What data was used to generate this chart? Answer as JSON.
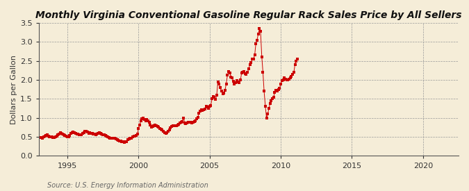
{
  "title": "Monthly Virginia Conventional Gasoline Regular Rack Sales Price by All Sellers",
  "ylabel": "Dollars per Gallon",
  "source": "Source: U.S. Energy Information Administration",
  "xlim": [
    1993.0,
    2022.5
  ],
  "ylim": [
    0.0,
    3.5
  ],
  "yticks": [
    0.0,
    0.5,
    1.0,
    1.5,
    2.0,
    2.5,
    3.0,
    3.5
  ],
  "xticks": [
    1995,
    2000,
    2005,
    2010,
    2015,
    2020
  ],
  "background_color": "#f5edd8",
  "plot_bg_color": "#f5edd8",
  "dot_color": "#cc0000",
  "line_color": "#cc0000",
  "dot_size": 5,
  "title_fontsize": 10,
  "label_fontsize": 8,
  "tick_fontsize": 8,
  "source_fontsize": 7,
  "data": [
    [
      1993.17,
      0.48
    ],
    [
      1993.25,
      0.47
    ],
    [
      1993.33,
      0.5
    ],
    [
      1993.42,
      0.52
    ],
    [
      1993.5,
      0.53
    ],
    [
      1993.58,
      0.55
    ],
    [
      1993.67,
      0.52
    ],
    [
      1993.75,
      0.5
    ],
    [
      1993.83,
      0.51
    ],
    [
      1993.92,
      0.5
    ],
    [
      1994.0,
      0.48
    ],
    [
      1994.08,
      0.49
    ],
    [
      1994.17,
      0.5
    ],
    [
      1994.25,
      0.52
    ],
    [
      1994.33,
      0.55
    ],
    [
      1994.42,
      0.58
    ],
    [
      1994.5,
      0.62
    ],
    [
      1994.58,
      0.6
    ],
    [
      1994.67,
      0.58
    ],
    [
      1994.75,
      0.55
    ],
    [
      1994.83,
      0.53
    ],
    [
      1994.92,
      0.52
    ],
    [
      1995.0,
      0.5
    ],
    [
      1995.08,
      0.51
    ],
    [
      1995.17,
      0.54
    ],
    [
      1995.25,
      0.6
    ],
    [
      1995.33,
      0.62
    ],
    [
      1995.42,
      0.63
    ],
    [
      1995.5,
      0.62
    ],
    [
      1995.58,
      0.6
    ],
    [
      1995.67,
      0.58
    ],
    [
      1995.75,
      0.57
    ],
    [
      1995.83,
      0.56
    ],
    [
      1995.92,
      0.55
    ],
    [
      1996.0,
      0.56
    ],
    [
      1996.08,
      0.59
    ],
    [
      1996.17,
      0.62
    ],
    [
      1996.25,
      0.64
    ],
    [
      1996.33,
      0.65
    ],
    [
      1996.42,
      0.63
    ],
    [
      1996.5,
      0.6
    ],
    [
      1996.58,
      0.62
    ],
    [
      1996.67,
      0.6
    ],
    [
      1996.75,
      0.59
    ],
    [
      1996.83,
      0.58
    ],
    [
      1996.92,
      0.57
    ],
    [
      1997.0,
      0.56
    ],
    [
      1997.08,
      0.58
    ],
    [
      1997.17,
      0.6
    ],
    [
      1997.25,
      0.62
    ],
    [
      1997.33,
      0.6
    ],
    [
      1997.42,
      0.58
    ],
    [
      1997.5,
      0.56
    ],
    [
      1997.58,
      0.55
    ],
    [
      1997.67,
      0.54
    ],
    [
      1997.75,
      0.52
    ],
    [
      1997.83,
      0.5
    ],
    [
      1997.92,
      0.49
    ],
    [
      1998.0,
      0.47
    ],
    [
      1998.08,
      0.46
    ],
    [
      1998.17,
      0.46
    ],
    [
      1998.25,
      0.47
    ],
    [
      1998.33,
      0.46
    ],
    [
      1998.42,
      0.44
    ],
    [
      1998.5,
      0.42
    ],
    [
      1998.58,
      0.41
    ],
    [
      1998.67,
      0.4
    ],
    [
      1998.75,
      0.39
    ],
    [
      1998.83,
      0.38
    ],
    [
      1998.92,
      0.37
    ],
    [
      1999.0,
      0.36
    ],
    [
      1999.08,
      0.37
    ],
    [
      1999.17,
      0.38
    ],
    [
      1999.25,
      0.42
    ],
    [
      1999.33,
      0.45
    ],
    [
      1999.42,
      0.46
    ],
    [
      1999.5,
      0.47
    ],
    [
      1999.58,
      0.5
    ],
    [
      1999.67,
      0.52
    ],
    [
      1999.75,
      0.52
    ],
    [
      1999.83,
      0.54
    ],
    [
      1999.92,
      0.58
    ],
    [
      2000.0,
      0.72
    ],
    [
      2000.08,
      0.82
    ],
    [
      2000.17,
      0.92
    ],
    [
      2000.25,
      0.97
    ],
    [
      2000.33,
      1.0
    ],
    [
      2000.42,
      0.96
    ],
    [
      2000.5,
      0.93
    ],
    [
      2000.58,
      0.95
    ],
    [
      2000.67,
      0.92
    ],
    [
      2000.75,
      0.88
    ],
    [
      2000.83,
      0.82
    ],
    [
      2000.92,
      0.76
    ],
    [
      2001.0,
      0.78
    ],
    [
      2001.08,
      0.8
    ],
    [
      2001.17,
      0.82
    ],
    [
      2001.25,
      0.8
    ],
    [
      2001.33,
      0.78
    ],
    [
      2001.42,
      0.75
    ],
    [
      2001.5,
      0.73
    ],
    [
      2001.58,
      0.7
    ],
    [
      2001.67,
      0.68
    ],
    [
      2001.75,
      0.65
    ],
    [
      2001.83,
      0.62
    ],
    [
      2001.92,
      0.6
    ],
    [
      2002.0,
      0.62
    ],
    [
      2002.08,
      0.65
    ],
    [
      2002.17,
      0.68
    ],
    [
      2002.25,
      0.74
    ],
    [
      2002.33,
      0.77
    ],
    [
      2002.42,
      0.79
    ],
    [
      2002.5,
      0.8
    ],
    [
      2002.58,
      0.8
    ],
    [
      2002.67,
      0.8
    ],
    [
      2002.75,
      0.82
    ],
    [
      2002.83,
      0.83
    ],
    [
      2002.92,
      0.87
    ],
    [
      2003.0,
      0.88
    ],
    [
      2003.08,
      0.91
    ],
    [
      2003.17,
      1.0
    ],
    [
      2003.25,
      0.87
    ],
    [
      2003.33,
      0.85
    ],
    [
      2003.42,
      0.86
    ],
    [
      2003.5,
      0.88
    ],
    [
      2003.58,
      0.89
    ],
    [
      2003.67,
      0.88
    ],
    [
      2003.75,
      0.87
    ],
    [
      2003.83,
      0.88
    ],
    [
      2003.92,
      0.9
    ],
    [
      2004.0,
      0.93
    ],
    [
      2004.08,
      0.97
    ],
    [
      2004.17,
      1.02
    ],
    [
      2004.25,
      1.12
    ],
    [
      2004.33,
      1.18
    ],
    [
      2004.42,
      1.22
    ],
    [
      2004.5,
      1.2
    ],
    [
      2004.58,
      1.22
    ],
    [
      2004.67,
      1.24
    ],
    [
      2004.75,
      1.3
    ],
    [
      2004.83,
      1.28
    ],
    [
      2004.92,
      1.25
    ],
    [
      2005.0,
      1.3
    ],
    [
      2005.08,
      1.32
    ],
    [
      2005.17,
      1.5
    ],
    [
      2005.25,
      1.57
    ],
    [
      2005.33,
      1.55
    ],
    [
      2005.42,
      1.48
    ],
    [
      2005.5,
      1.6
    ],
    [
      2005.58,
      1.95
    ],
    [
      2005.67,
      1.9
    ],
    [
      2005.75,
      1.8
    ],
    [
      2005.83,
      1.7
    ],
    [
      2005.92,
      1.63
    ],
    [
      2006.0,
      1.65
    ],
    [
      2006.08,
      1.72
    ],
    [
      2006.17,
      1.9
    ],
    [
      2006.25,
      2.12
    ],
    [
      2006.33,
      2.22
    ],
    [
      2006.42,
      2.18
    ],
    [
      2006.5,
      2.08
    ],
    [
      2006.58,
      2.05
    ],
    [
      2006.67,
      1.97
    ],
    [
      2006.75,
      1.9
    ],
    [
      2006.83,
      1.92
    ],
    [
      2006.92,
      1.98
    ],
    [
      2007.0,
      1.95
    ],
    [
      2007.08,
      1.92
    ],
    [
      2007.17,
      2.0
    ],
    [
      2007.25,
      2.18
    ],
    [
      2007.33,
      2.2
    ],
    [
      2007.42,
      2.22
    ],
    [
      2007.5,
      2.17
    ],
    [
      2007.58,
      2.15
    ],
    [
      2007.67,
      2.2
    ],
    [
      2007.75,
      2.3
    ],
    [
      2007.83,
      2.4
    ],
    [
      2007.92,
      2.45
    ],
    [
      2008.0,
      2.55
    ],
    [
      2008.08,
      2.55
    ],
    [
      2008.17,
      2.65
    ],
    [
      2008.25,
      2.95
    ],
    [
      2008.33,
      3.05
    ],
    [
      2008.42,
      3.2
    ],
    [
      2008.5,
      3.35
    ],
    [
      2008.58,
      3.28
    ],
    [
      2008.67,
      2.6
    ],
    [
      2008.75,
      2.2
    ],
    [
      2008.83,
      1.7
    ],
    [
      2008.92,
      1.3
    ],
    [
      2009.0,
      1.0
    ],
    [
      2009.08,
      1.1
    ],
    [
      2009.17,
      1.25
    ],
    [
      2009.25,
      1.38
    ],
    [
      2009.33,
      1.45
    ],
    [
      2009.42,
      1.5
    ],
    [
      2009.5,
      1.55
    ],
    [
      2009.58,
      1.68
    ],
    [
      2009.67,
      1.72
    ],
    [
      2009.75,
      1.7
    ],
    [
      2009.83,
      1.75
    ],
    [
      2009.92,
      1.78
    ],
    [
      2010.0,
      1.9
    ],
    [
      2010.08,
      1.98
    ],
    [
      2010.17,
      2.0
    ],
    [
      2010.25,
      2.05
    ],
    [
      2010.33,
      2.02
    ],
    [
      2010.42,
      2.0
    ],
    [
      2010.5,
      2.0
    ],
    [
      2010.58,
      2.02
    ],
    [
      2010.67,
      2.05
    ],
    [
      2010.75,
      2.1
    ],
    [
      2010.83,
      2.15
    ],
    [
      2010.92,
      2.2
    ],
    [
      2011.0,
      2.4
    ],
    [
      2011.08,
      2.5
    ],
    [
      2011.17,
      2.55
    ]
  ]
}
